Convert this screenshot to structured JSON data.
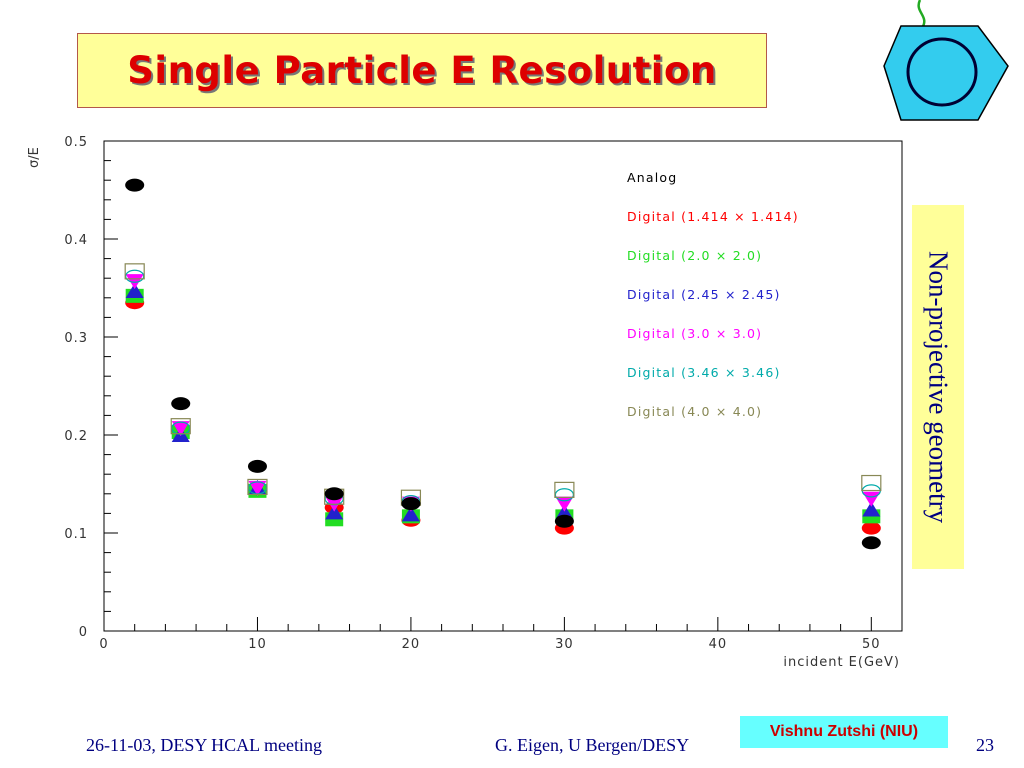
{
  "slide": {
    "title": "Single Particle E Resolution",
    "side_label": "Non-projective geometry",
    "footer_left": "26-11-03, DESY HCAL meeting",
    "footer_center": "G. Eigen,  U Bergen/DESY",
    "credit": "Vishnu Zutshi (NIU)",
    "page_number": "23"
  },
  "colors": {
    "title_text": "#dd0000",
    "title_bg": "#ffff99",
    "side_bg": "#ffff99",
    "side_text": "#000080",
    "footer_text": "#000080",
    "credit_bg": "#66ffff",
    "credit_text": "#cc0000",
    "logo_fill": "#33ccee"
  },
  "icons": {
    "logo": "hexagon-logo-icon"
  },
  "chart_data": {
    "type": "scatter",
    "xlabel": "incident E(GeV)",
    "ylabel": "σ/E",
    "xlim": [
      0,
      52
    ],
    "ylim": [
      0,
      0.5
    ],
    "xticks": [
      "0",
      "10",
      "20",
      "30",
      "40",
      "50"
    ],
    "yticks": [
      "0",
      "0.1",
      "0.2",
      "0.3",
      "0.4",
      "0.5"
    ],
    "x": [
      2,
      5,
      10,
      15,
      20,
      30,
      50
    ],
    "legend_position": "top-right",
    "series": [
      {
        "name": "Analog",
        "color": "#000000",
        "marker": "filled-circle",
        "values": [
          0.455,
          0.232,
          0.168,
          0.14,
          0.13,
          0.112,
          0.09
        ]
      },
      {
        "name": "Digital (1.414 x 1.414)",
        "color": "#ff0000",
        "marker": "filled-circle",
        "values": [
          0.335,
          0.205,
          0.145,
          0.126,
          0.113,
          0.105,
          0.105
        ]
      },
      {
        "name": "Digital (2.0 x 2.0)",
        "color": "#22dd22",
        "marker": "filled-square",
        "values": [
          0.342,
          0.203,
          0.143,
          0.114,
          0.117,
          0.117,
          0.117
        ]
      },
      {
        "name": "Digital (2.45 x 2.45)",
        "color": "#2222cc",
        "marker": "filled-triangle",
        "values": [
          0.347,
          0.2,
          0.146,
          0.121,
          0.119,
          0.121,
          0.124
        ]
      },
      {
        "name": "Digital (3.0 x 3.0)",
        "color": "#ff00ff",
        "marker": "filled-inverted-triangle",
        "values": [
          0.357,
          0.207,
          0.146,
          0.13,
          0.13,
          0.13,
          0.135
        ]
      },
      {
        "name": "Digital (3.46 x 3.46)",
        "color": "#00aaaa",
        "marker": "open-circle",
        "values": [
          0.362,
          0.207,
          0.146,
          0.135,
          0.132,
          0.139,
          0.143
        ]
      },
      {
        "name": "Digital (4.0 x 4.0)",
        "color": "#888855",
        "marker": "open-square",
        "values": [
          0.367,
          0.209,
          0.147,
          0.137,
          0.136,
          0.144,
          0.151
        ]
      }
    ]
  }
}
